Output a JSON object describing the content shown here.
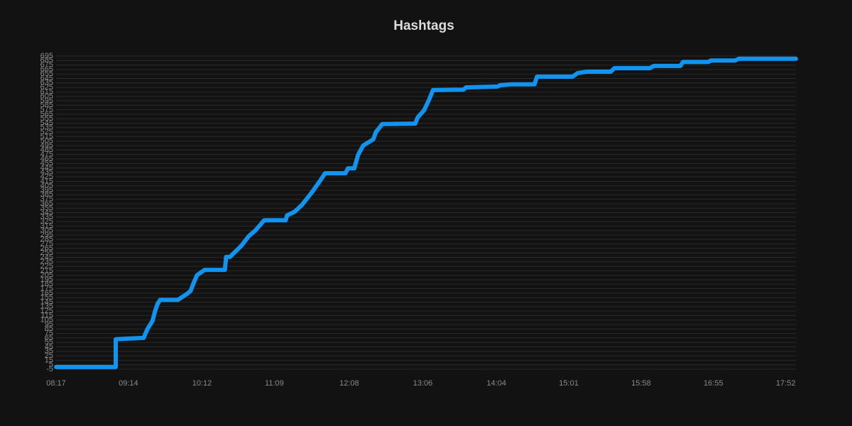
{
  "chart_data": {
    "type": "line",
    "title": "Hashtags",
    "x": [
      "08:17",
      "09:04",
      "09:04",
      "09:26",
      "09:29",
      "09:33",
      "09:35",
      "09:37",
      "09:39",
      "09:53",
      "10:00",
      "10:03",
      "10:05",
      "10:08",
      "10:14",
      "10:30",
      "10:31",
      "10:34",
      "10:43",
      "10:49",
      "10:54",
      "11:01",
      "11:18",
      "11:19",
      "11:25",
      "11:31",
      "11:39",
      "11:45",
      "11:49",
      "12:05",
      "12:07",
      "12:12",
      "12:15",
      "12:19",
      "12:27",
      "12:29",
      "12:34",
      "13:00",
      "13:02",
      "13:07",
      "13:11",
      "13:14",
      "13:38",
      "13:40",
      "14:05",
      "14:07",
      "14:16",
      "14:34",
      "14:36",
      "15:04",
      "15:08",
      "15:15",
      "15:34",
      "15:37",
      "16:05",
      "16:08",
      "16:29",
      "16:31",
      "16:51",
      "16:53",
      "17:12",
      "17:15",
      "18:00"
    ],
    "series": [
      {
        "name": "Hashtags",
        "color": "#1193f0",
        "values": [
          0,
          0,
          62,
          65,
          85,
          103,
          125,
          141,
          150,
          150,
          163,
          170,
          185,
          205,
          217,
          217,
          246,
          246,
          271,
          293,
          305,
          328,
          328,
          339,
          347,
          363,
          392,
          416,
          433,
          433,
          444,
          444,
          474,
          495,
          509,
          525,
          543,
          544,
          558,
          574,
          598,
          619,
          620,
          625,
          627,
          630,
          632,
          632,
          649,
          649,
          657,
          660,
          660,
          668,
          668,
          673,
          673,
          682,
          682,
          685,
          685,
          689,
          689
        ]
      }
    ],
    "xlim": [
      "08:17",
      "18:00"
    ],
    "xticks": [
      "08:17",
      "09:14",
      "10:12",
      "11:09",
      "12:08",
      "13:06",
      "14:04",
      "15:01",
      "15:58",
      "16:55",
      "17:52"
    ],
    "ylim": [
      -5,
      695
    ],
    "yticks": [
      -5,
      5,
      15,
      25,
      35,
      45,
      55,
      65,
      75,
      85,
      95,
      105,
      115,
      125,
      135,
      145,
      155,
      165,
      175,
      185,
      195,
      205,
      215,
      225,
      235,
      245,
      255,
      265,
      275,
      285,
      295,
      305,
      315,
      325,
      335,
      345,
      355,
      365,
      375,
      385,
      395,
      405,
      415,
      425,
      435,
      445,
      455,
      465,
      475,
      485,
      495,
      505,
      515,
      525,
      535,
      545,
      555,
      565,
      575,
      585,
      595,
      605,
      615,
      625,
      635,
      645,
      655,
      665,
      675,
      685,
      695
    ],
    "grid": true
  }
}
